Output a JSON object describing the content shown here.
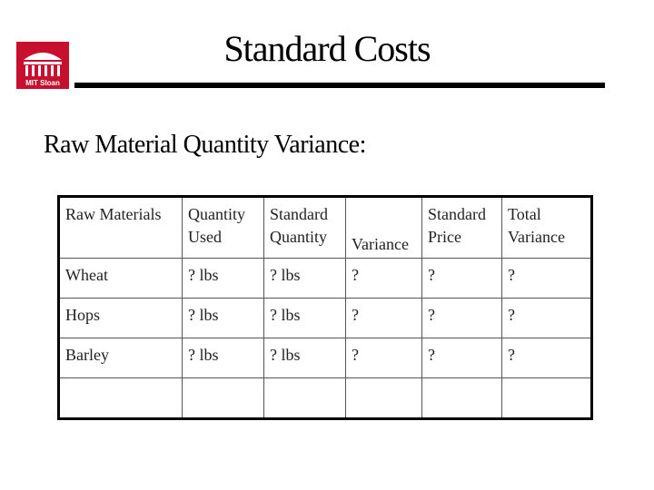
{
  "header": {
    "title": "Standard Costs",
    "logo_text": "MIT Sloan"
  },
  "subtitle": "Raw Material Quantity Variance:",
  "table": {
    "columns": [
      [
        "Raw Materials"
      ],
      [
        "Quantity",
        "Used"
      ],
      [
        "Standard",
        "Quantity"
      ],
      [
        "Variance"
      ],
      [
        "Standard",
        "Price"
      ],
      [
        "Total",
        "Variance"
      ]
    ],
    "rows": [
      [
        "Wheat",
        "? lbs",
        "? lbs",
        "?",
        "?",
        "?"
      ],
      [
        "Hops",
        "? lbs",
        "? lbs",
        "?",
        "?",
        "?"
      ],
      [
        "Barley",
        "? lbs",
        "? lbs",
        "?",
        "?",
        "?"
      ]
    ]
  }
}
